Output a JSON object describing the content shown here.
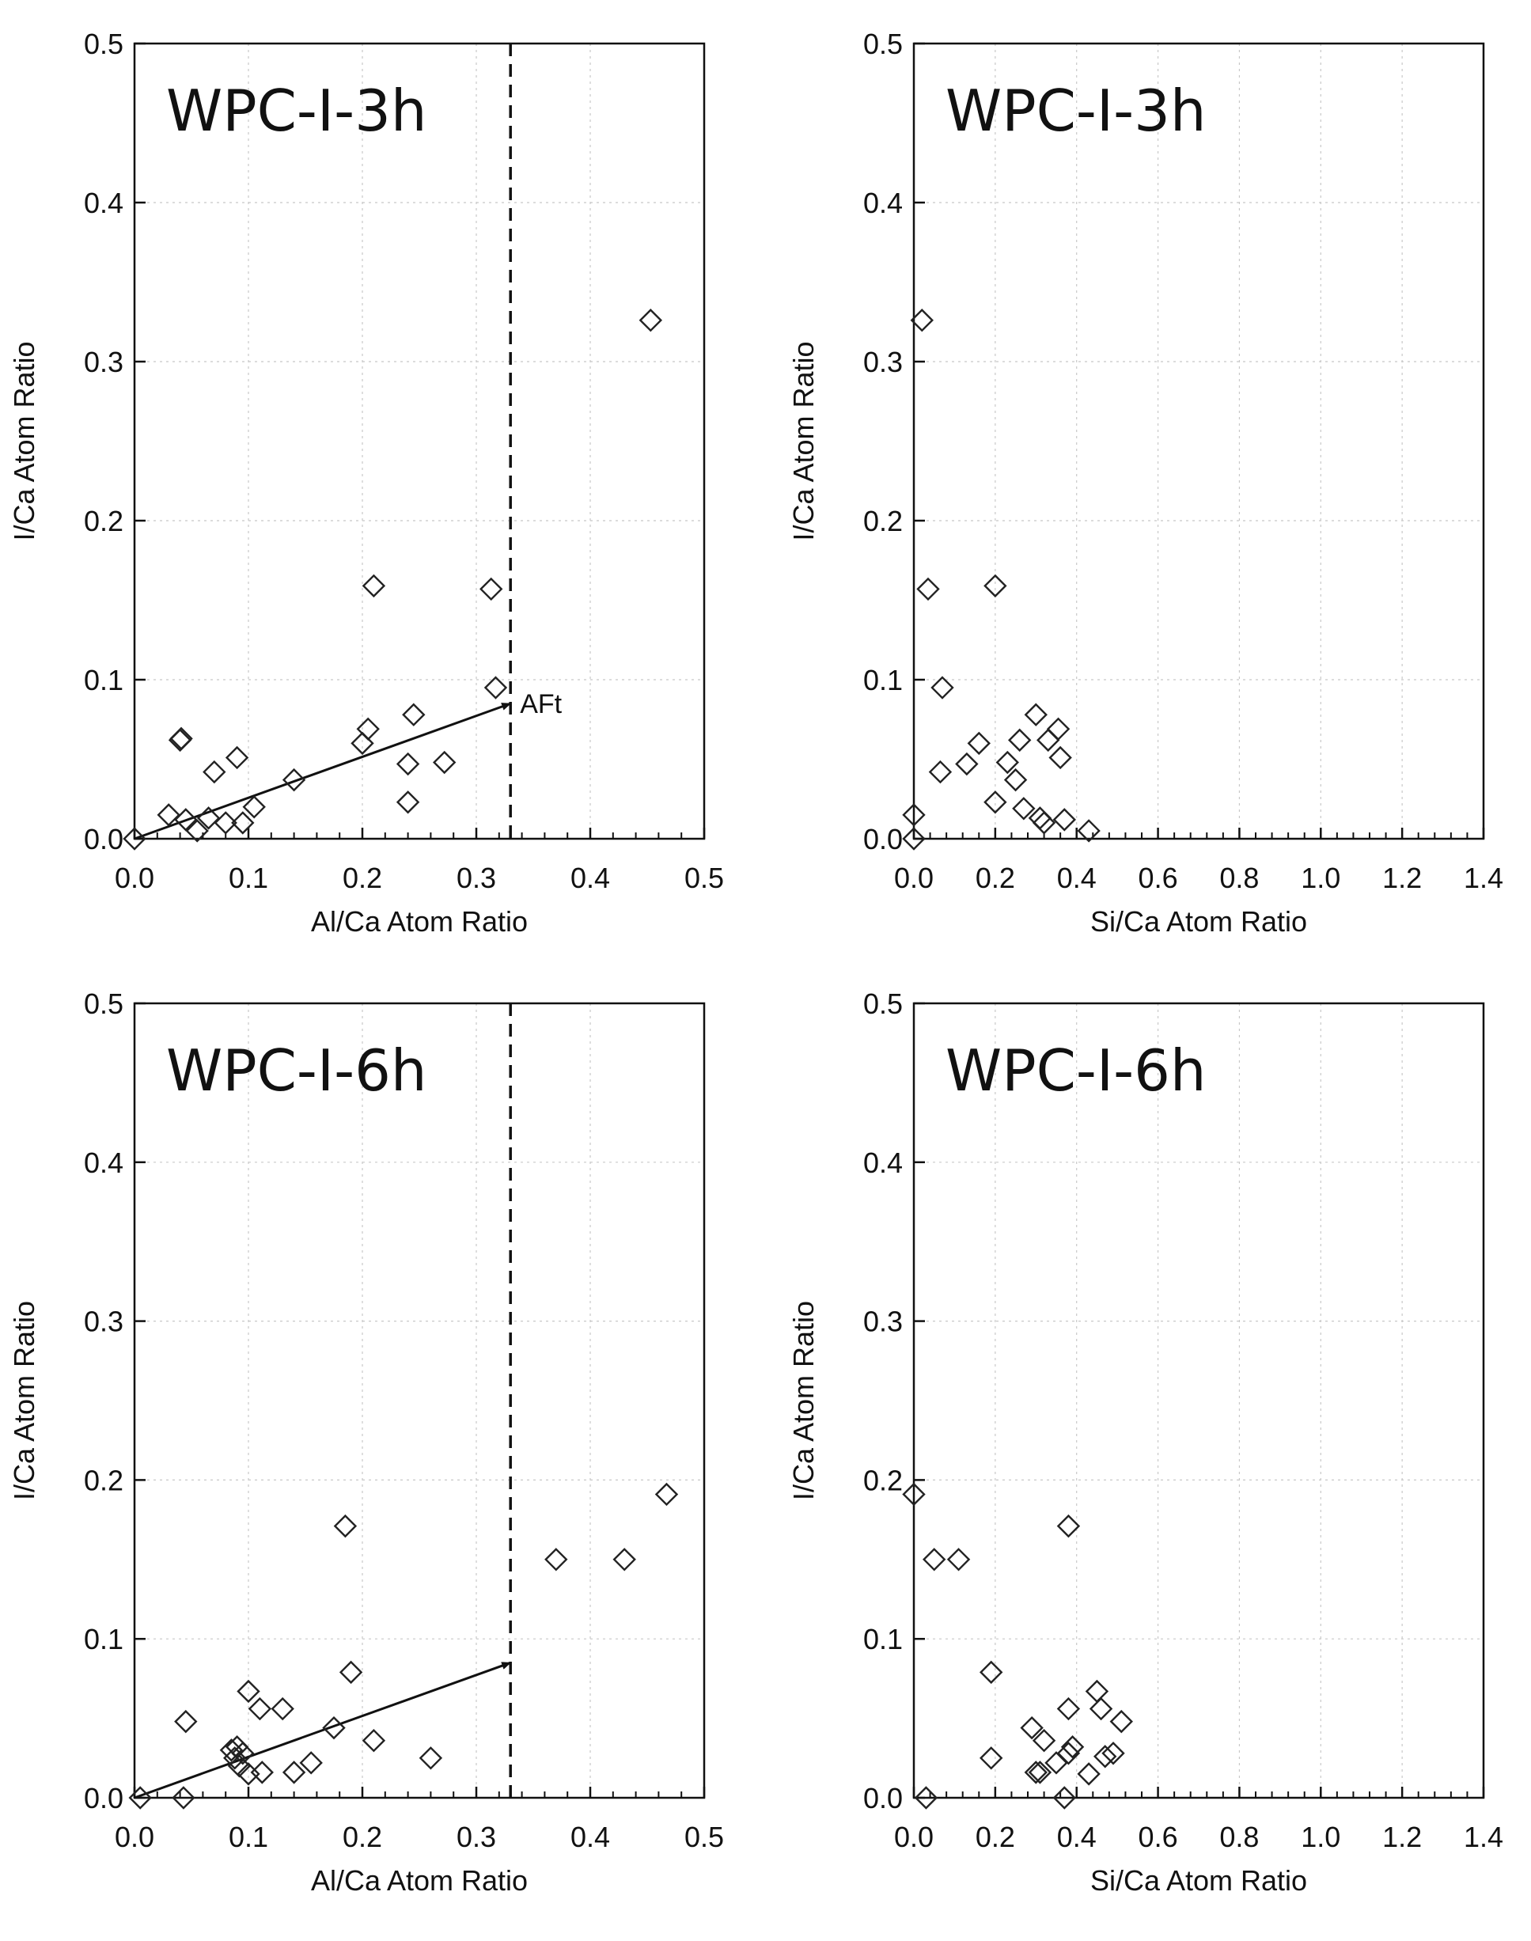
{
  "figure": {
    "panels": [
      {
        "title": "WPC-I-3h",
        "x_axis_label": "Al/Ca Atom Ratio",
        "y_axis_label": "I/Ca Atom Ratio"
      },
      {
        "title": "WPC-I-3h",
        "x_axis_label": "Si/Ca Atom Ratio",
        "y_axis_label": "I/Ca Atom Ratio"
      },
      {
        "title": "WPC-I-6h",
        "x_axis_label": "Al/Ca Atom Ratio",
        "y_axis_label": "I/Ca Atom Ratio"
      },
      {
        "title": "WPC-I-6h",
        "x_axis_label": "Si/Ca Atom Ratio",
        "y_axis_label": "I/Ca Atom Ratio"
      }
    ]
  },
  "chart_data": [
    {
      "type": "scatter",
      "title": "WPC-I-3h",
      "xlabel": "Al/Ca Atom Ratio",
      "ylabel": "I/Ca Atom Ratio",
      "xlim": [
        0,
        0.5
      ],
      "ylim": [
        0,
        0.5
      ],
      "xticks": [
        "0.0",
        "0.1",
        "0.2",
        "0.3",
        "0.4",
        "0.5"
      ],
      "yticks": [
        "0.0",
        "0.1",
        "0.2",
        "0.3",
        "0.4",
        "0.5"
      ],
      "grid": true,
      "marker": "open-diamond",
      "points": [
        {
          "x": 0.0,
          "y": 0.0
        },
        {
          "x": 0.03,
          "y": 0.015
        },
        {
          "x": 0.04,
          "y": 0.062
        },
        {
          "x": 0.041,
          "y": 0.063
        },
        {
          "x": 0.045,
          "y": 0.012
        },
        {
          "x": 0.055,
          "y": 0.005
        },
        {
          "x": 0.065,
          "y": 0.013
        },
        {
          "x": 0.07,
          "y": 0.042
        },
        {
          "x": 0.08,
          "y": 0.01
        },
        {
          "x": 0.09,
          "y": 0.051
        },
        {
          "x": 0.095,
          "y": 0.01
        },
        {
          "x": 0.105,
          "y": 0.02
        },
        {
          "x": 0.14,
          "y": 0.037
        },
        {
          "x": 0.2,
          "y": 0.06
        },
        {
          "x": 0.205,
          "y": 0.069
        },
        {
          "x": 0.21,
          "y": 0.159
        },
        {
          "x": 0.24,
          "y": 0.047
        },
        {
          "x": 0.24,
          "y": 0.023
        },
        {
          "x": 0.245,
          "y": 0.078
        },
        {
          "x": 0.272,
          "y": 0.048
        },
        {
          "x": 0.313,
          "y": 0.157
        },
        {
          "x": 0.317,
          "y": 0.095
        },
        {
          "x": 0.453,
          "y": 0.326
        }
      ],
      "reference_line": {
        "x": 0.33,
        "style": "dashed"
      },
      "arrow": {
        "from": [
          0.0,
          0.0
        ],
        "to": [
          0.33,
          0.085
        ],
        "label": "AFt"
      }
    },
    {
      "type": "scatter",
      "title": "WPC-I-3h",
      "xlabel": "Si/Ca Atom Ratio",
      "ylabel": "I/Ca Atom Ratio",
      "xlim": [
        0,
        1.4
      ],
      "ylim": [
        0,
        0.5
      ],
      "xticks": [
        "0.0",
        "0.2",
        "0.4",
        "0.6",
        "0.8",
        "1.0",
        "1.2",
        "1.4"
      ],
      "yticks": [
        "0.0",
        "0.1",
        "0.2",
        "0.3",
        "0.4",
        "0.5"
      ],
      "grid": true,
      "marker": "open-diamond",
      "points": [
        {
          "x": 0.0,
          "y": 0.0
        },
        {
          "x": 0.0,
          "y": 0.015
        },
        {
          "x": 0.02,
          "y": 0.326
        },
        {
          "x": 0.035,
          "y": 0.157
        },
        {
          "x": 0.065,
          "y": 0.042
        },
        {
          "x": 0.07,
          "y": 0.095
        },
        {
          "x": 0.13,
          "y": 0.047
        },
        {
          "x": 0.16,
          "y": 0.06
        },
        {
          "x": 0.2,
          "y": 0.159
        },
        {
          "x": 0.2,
          "y": 0.023
        },
        {
          "x": 0.23,
          "y": 0.048
        },
        {
          "x": 0.25,
          "y": 0.037
        },
        {
          "x": 0.26,
          "y": 0.062
        },
        {
          "x": 0.27,
          "y": 0.019
        },
        {
          "x": 0.3,
          "y": 0.078
        },
        {
          "x": 0.31,
          "y": 0.013
        },
        {
          "x": 0.32,
          "y": 0.01
        },
        {
          "x": 0.33,
          "y": 0.062
        },
        {
          "x": 0.355,
          "y": 0.069
        },
        {
          "x": 0.36,
          "y": 0.051
        },
        {
          "x": 0.37,
          "y": 0.012
        },
        {
          "x": 0.43,
          "y": 0.005
        }
      ]
    },
    {
      "type": "scatter",
      "title": "WPC-I-6h",
      "xlabel": "Al/Ca Atom Ratio",
      "ylabel": "I/Ca Atom Ratio",
      "xlim": [
        0,
        0.5
      ],
      "ylim": [
        0,
        0.5
      ],
      "xticks": [
        "0.0",
        "0.1",
        "0.2",
        "0.3",
        "0.4",
        "0.5"
      ],
      "yticks": [
        "0.0",
        "0.1",
        "0.2",
        "0.3",
        "0.4",
        "0.5"
      ],
      "grid": true,
      "marker": "open-diamond",
      "points": [
        {
          "x": 0.005,
          "y": 0.0
        },
        {
          "x": 0.043,
          "y": 0.0
        },
        {
          "x": 0.045,
          "y": 0.048
        },
        {
          "x": 0.085,
          "y": 0.03
        },
        {
          "x": 0.088,
          "y": 0.025
        },
        {
          "x": 0.09,
          "y": 0.032
        },
        {
          "x": 0.092,
          "y": 0.02
        },
        {
          "x": 0.095,
          "y": 0.028
        },
        {
          "x": 0.1,
          "y": 0.015
        },
        {
          "x": 0.1,
          "y": 0.067
        },
        {
          "x": 0.11,
          "y": 0.056
        },
        {
          "x": 0.112,
          "y": 0.016
        },
        {
          "x": 0.13,
          "y": 0.056
        },
        {
          "x": 0.14,
          "y": 0.016
        },
        {
          "x": 0.155,
          "y": 0.022
        },
        {
          "x": 0.175,
          "y": 0.044
        },
        {
          "x": 0.185,
          "y": 0.171
        },
        {
          "x": 0.19,
          "y": 0.079
        },
        {
          "x": 0.21,
          "y": 0.036
        },
        {
          "x": 0.26,
          "y": 0.025
        },
        {
          "x": 0.37,
          "y": 0.15
        },
        {
          "x": 0.43,
          "y": 0.15
        },
        {
          "x": 0.467,
          "y": 0.191
        }
      ],
      "reference_line": {
        "x": 0.33,
        "style": "dashed"
      },
      "arrow": {
        "from": [
          0.0,
          0.0
        ],
        "to": [
          0.33,
          0.085
        ]
      }
    },
    {
      "type": "scatter",
      "title": "WPC-I-6h",
      "xlabel": "Si/Ca Atom Ratio",
      "ylabel": "I/Ca Atom Ratio",
      "xlim": [
        0,
        1.4
      ],
      "ylim": [
        0,
        0.5
      ],
      "xticks": [
        "0.0",
        "0.2",
        "0.4",
        "0.6",
        "0.8",
        "1.0",
        "1.2",
        "1.4"
      ],
      "yticks": [
        "0.0",
        "0.1",
        "0.2",
        "0.3",
        "0.4",
        "0.5"
      ],
      "grid": true,
      "marker": "open-diamond",
      "points": [
        {
          "x": 0.0,
          "y": 0.191
        },
        {
          "x": 0.03,
          "y": 0.0
        },
        {
          "x": 0.05,
          "y": 0.15
        },
        {
          "x": 0.11,
          "y": 0.15
        },
        {
          "x": 0.19,
          "y": 0.079
        },
        {
          "x": 0.19,
          "y": 0.025
        },
        {
          "x": 0.29,
          "y": 0.044
        },
        {
          "x": 0.3,
          "y": 0.016
        },
        {
          "x": 0.31,
          "y": 0.016
        },
        {
          "x": 0.32,
          "y": 0.036
        },
        {
          "x": 0.35,
          "y": 0.022
        },
        {
          "x": 0.37,
          "y": 0.0
        },
        {
          "x": 0.38,
          "y": 0.171
        },
        {
          "x": 0.38,
          "y": 0.056
        },
        {
          "x": 0.38,
          "y": 0.028
        },
        {
          "x": 0.39,
          "y": 0.032
        },
        {
          "x": 0.43,
          "y": 0.015
        },
        {
          "x": 0.45,
          "y": 0.067
        },
        {
          "x": 0.46,
          "y": 0.056
        },
        {
          "x": 0.47,
          "y": 0.026
        },
        {
          "x": 0.49,
          "y": 0.028
        },
        {
          "x": 0.51,
          "y": 0.048
        }
      ]
    }
  ]
}
